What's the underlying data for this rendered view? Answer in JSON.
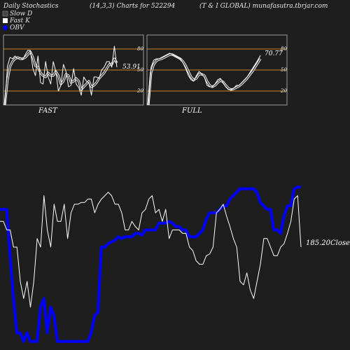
{
  "header": {
    "title": "Daily Stochastics",
    "params": "(14,3,3) Charts for 522294",
    "company": "(T & I GLOBAL) munafasutra.tbrjar.com"
  },
  "legend": {
    "slow_d": "Slow  D",
    "fast_k": "Fast K",
    "obv": "OBV",
    "slow_d_color": "#444444",
    "fast_k_color": "#ffffff",
    "obv_color": "#0000ff"
  },
  "panels": {
    "fast_label": "FAST",
    "full_label": "FULL",
    "fast_value_label": "53.91",
    "full_value_label": "70.77",
    "levels": [
      "80",
      "50",
      "20"
    ],
    "level_line_color": "#c8862a"
  },
  "price": {
    "close_label": "185.20Close"
  },
  "chart_data": [
    {
      "type": "line",
      "title": "FAST",
      "ylim": [
        0,
        100
      ],
      "ref_lines": [
        80,
        50,
        20
      ],
      "series": [
        {
          "name": "Fast K",
          "values": [
            0,
            55,
            68,
            66,
            70,
            66,
            68,
            65,
            72,
            78,
            78,
            52,
            42,
            70,
            32,
            30,
            62,
            40,
            30,
            62,
            48,
            20,
            28,
            58,
            48,
            26,
            28,
            52,
            30,
            25,
            14,
            40,
            34,
            32,
            14,
            40,
            40,
            38,
            50,
            54,
            62,
            62,
            54,
            84,
            53.91
          ]
        },
        {
          "name": "Slow D",
          "values": [
            0,
            35,
            55,
            62,
            66,
            68,
            66,
            66,
            68,
            72,
            76,
            68,
            56,
            54,
            46,
            42,
            40,
            46,
            42,
            42,
            48,
            42,
            30,
            34,
            44,
            42,
            32,
            34,
            38,
            34,
            22,
            26,
            30,
            34,
            26,
            28,
            32,
            38,
            42,
            46,
            52,
            58,
            58,
            66,
            60
          ]
        }
      ]
    },
    {
      "type": "line",
      "title": "FULL",
      "ylim": [
        0,
        100
      ],
      "ref_lines": [
        80,
        50,
        20
      ],
      "series": [
        {
          "name": "Fast K",
          "values": [
            0,
            54,
            64,
            66,
            66,
            68,
            70,
            72,
            74,
            72,
            70,
            68,
            66,
            60,
            52,
            42,
            36,
            34,
            42,
            48,
            44,
            40,
            28,
            26,
            26,
            30,
            36,
            38,
            32,
            26,
            22,
            22,
            24,
            28,
            28,
            32,
            36,
            40,
            46,
            52,
            58,
            64,
            70.77
          ]
        },
        {
          "name": "Slow D",
          "values": [
            0,
            46,
            58,
            63,
            65,
            66,
            68,
            70,
            72,
            72,
            70,
            68,
            66,
            62,
            56,
            48,
            40,
            36,
            38,
            44,
            44,
            42,
            34,
            28,
            26,
            28,
            32,
            35,
            33,
            28,
            24,
            22,
            23,
            25,
            27,
            30,
            34,
            38,
            43,
            48,
            54,
            60,
            66
          ]
        }
      ]
    },
    {
      "type": "line",
      "ylim": [
        0,
        100
      ],
      "series": [
        {
          "name": "OBV",
          "values": [
            82,
            82,
            82,
            55,
            30,
            10,
            10,
            5,
            10,
            5,
            5,
            5,
            25,
            30,
            10,
            25,
            20,
            5,
            5,
            5,
            5,
            5,
            5,
            5,
            5,
            5,
            5,
            10,
            20,
            22,
            60,
            60,
            62,
            63,
            64,
            66,
            65,
            66,
            66,
            66,
            68,
            68,
            67,
            70,
            70,
            70,
            70,
            74,
            74,
            74,
            75,
            74,
            72,
            72,
            70,
            70,
            66,
            66,
            66,
            68,
            70,
            76,
            80,
            80,
            80,
            82,
            84,
            84,
            88,
            90,
            92,
            94,
            94,
            94,
            94,
            94,
            92,
            86,
            84,
            82,
            82,
            70,
            70,
            68,
            78,
            84,
            84,
            94,
            95,
            95
          ]
        },
        {
          "name": "Price",
          "values": [
            75,
            75,
            70,
            70,
            60,
            60,
            40,
            30,
            40,
            25,
            40,
            65,
            60,
            90,
            70,
            60,
            85,
            75,
            75,
            85,
            65,
            80,
            85,
            85,
            86,
            86,
            88,
            88,
            80,
            85,
            88,
            90,
            92,
            90,
            85,
            85,
            80,
            70,
            70,
            75,
            72,
            70,
            80,
            82,
            88,
            90,
            80,
            82,
            75,
            82,
            65,
            70,
            70,
            70,
            68,
            68,
            60,
            58,
            52,
            50,
            50,
            55,
            56,
            60,
            80,
            82,
            85,
            78,
            72,
            65,
            60,
            40,
            38,
            45,
            35,
            30,
            40,
            50,
            65,
            65,
            60,
            55,
            55,
            60,
            62,
            68,
            75,
            88,
            90,
            60
          ]
        }
      ]
    }
  ]
}
